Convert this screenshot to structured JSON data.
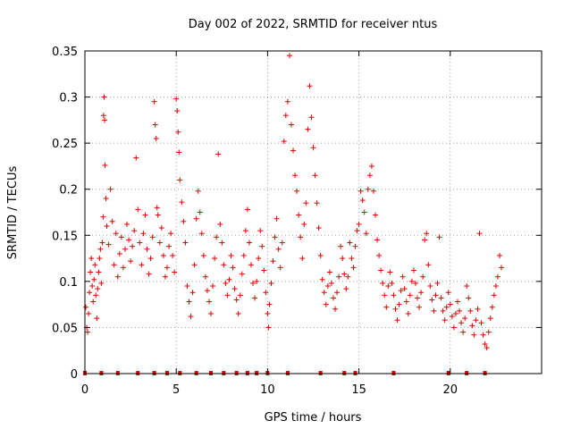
{
  "chart_data": {
    "type": "scatter",
    "title": "Day 002 of 2022, SRMTID for receiver ntus",
    "xlabel": "GPS time / hours",
    "ylabel": "SRMTID / TECUs",
    "xlim": [
      0,
      25
    ],
    "ylim": [
      0,
      0.35
    ],
    "grid": true,
    "marker": "+",
    "series_color": "#e00000",
    "xticks": [
      0,
      5,
      10,
      15,
      20
    ],
    "xtick_labels": [
      "0",
      "5",
      "10",
      "15",
      "20"
    ],
    "yticks": [
      0,
      0.05,
      0.1,
      0.15,
      0.2,
      0.25,
      0.3,
      0.35
    ],
    "ytick_labels": [
      "0",
      "0.05",
      "0.1",
      "0.15",
      "0.2",
      "0.25",
      "0.3",
      "0.35"
    ],
    "baseline_markers_x": [
      0.0,
      0.9,
      1.8,
      2.9,
      3.8,
      4.5,
      5.2,
      6.1,
      6.9,
      7.6,
      8.3,
      8.9,
      9.4,
      10.0,
      11.1,
      12.9,
      14.2,
      14.8,
      16.9,
      19.9,
      20.9,
      21.9
    ],
    "series": [
      {
        "name": "SRMTID",
        "points": [
          [
            0.05,
            0.072
          ],
          [
            0.1,
            0.05
          ],
          [
            0.15,
            0.045
          ],
          [
            0.2,
            0.065
          ],
          [
            0.25,
            0.088
          ],
          [
            0.3,
            0.11
          ],
          [
            0.35,
            0.125
          ],
          [
            0.4,
            0.095
          ],
          [
            0.45,
            0.078
          ],
          [
            0.5,
            0.102
          ],
          [
            0.55,
            0.118
          ],
          [
            0.6,
            0.085
          ],
          [
            0.65,
            0.06
          ],
          [
            0.7,
            0.092
          ],
          [
            0.75,
            0.11
          ],
          [
            0.8,
            0.125
          ],
          [
            0.85,
            0.135
          ],
          [
            0.9,
            0.098
          ],
          [
            0.95,
            0.142
          ],
          [
            1.0,
            0.17
          ],
          [
            1.02,
            0.28
          ],
          [
            1.05,
            0.3
          ],
          [
            1.08,
            0.275
          ],
          [
            1.1,
            0.226
          ],
          [
            1.15,
            0.19
          ],
          [
            1.2,
            0.16
          ],
          [
            1.3,
            0.14
          ],
          [
            1.4,
            0.2
          ],
          [
            1.5,
            0.165
          ],
          [
            1.6,
            0.118
          ],
          [
            1.7,
            0.152
          ],
          [
            1.8,
            0.105
          ],
          [
            1.9,
            0.13
          ],
          [
            2.0,
            0.148
          ],
          [
            2.1,
            0.115
          ],
          [
            2.2,
            0.135
          ],
          [
            2.3,
            0.162
          ],
          [
            2.4,
            0.145
          ],
          [
            2.5,
            0.122
          ],
          [
            2.6,
            0.138
          ],
          [
            2.7,
            0.155
          ],
          [
            2.8,
            0.234
          ],
          [
            2.9,
            0.178
          ],
          [
            3.0,
            0.142
          ],
          [
            3.1,
            0.118
          ],
          [
            3.2,
            0.152
          ],
          [
            3.3,
            0.172
          ],
          [
            3.4,
            0.135
          ],
          [
            3.5,
            0.108
          ],
          [
            3.6,
            0.125
          ],
          [
            3.7,
            0.148
          ],
          [
            3.8,
            0.295
          ],
          [
            3.85,
            0.27
          ],
          [
            3.9,
            0.255
          ],
          [
            3.95,
            0.18
          ],
          [
            4.0,
            0.172
          ],
          [
            4.1,
            0.142
          ],
          [
            4.2,
            0.158
          ],
          [
            4.3,
            0.128
          ],
          [
            4.4,
            0.105
          ],
          [
            4.5,
            0.115
          ],
          [
            4.6,
            0.138
          ],
          [
            4.7,
            0.152
          ],
          [
            4.8,
            0.128
          ],
          [
            4.9,
            0.11
          ],
          [
            5.0,
            0.298
          ],
          [
            5.05,
            0.285
          ],
          [
            5.1,
            0.262
          ],
          [
            5.15,
            0.24
          ],
          [
            5.2,
            0.21
          ],
          [
            5.3,
            0.186
          ],
          [
            5.4,
            0.165
          ],
          [
            5.5,
            0.142
          ],
          [
            5.6,
            0.095
          ],
          [
            5.7,
            0.078
          ],
          [
            5.8,
            0.062
          ],
          [
            5.9,
            0.088
          ],
          [
            6.0,
            0.118
          ],
          [
            6.1,
            0.168
          ],
          [
            6.2,
            0.198
          ],
          [
            6.3,
            0.175
          ],
          [
            6.4,
            0.152
          ],
          [
            6.5,
            0.128
          ],
          [
            6.6,
            0.105
          ],
          [
            6.7,
            0.09
          ],
          [
            6.8,
            0.078
          ],
          [
            6.9,
            0.065
          ],
          [
            7.0,
            0.095
          ],
          [
            7.1,
            0.125
          ],
          [
            7.2,
            0.148
          ],
          [
            7.3,
            0.238
          ],
          [
            7.4,
            0.162
          ],
          [
            7.5,
            0.142
          ],
          [
            7.6,
            0.118
          ],
          [
            7.7,
            0.098
          ],
          [
            7.8,
            0.085
          ],
          [
            7.9,
            0.102
          ],
          [
            8.0,
            0.128
          ],
          [
            8.1,
            0.115
          ],
          [
            8.2,
            0.092
          ],
          [
            8.3,
            0.08
          ],
          [
            8.4,
            0.065
          ],
          [
            8.5,
            0.085
          ],
          [
            8.6,
            0.108
          ],
          [
            8.7,
            0.128
          ],
          [
            8.8,
            0.155
          ],
          [
            8.9,
            0.178
          ],
          [
            9.0,
            0.142
          ],
          [
            9.1,
            0.118
          ],
          [
            9.2,
            0.098
          ],
          [
            9.3,
            0.082
          ],
          [
            9.4,
            0.1
          ],
          [
            9.5,
            0.125
          ],
          [
            9.6,
            0.155
          ],
          [
            9.7,
            0.138
          ],
          [
            9.8,
            0.112
          ],
          [
            9.9,
            0.088
          ],
          [
            10.0,
            0.065
          ],
          [
            10.05,
            0.05
          ],
          [
            10.1,
            0.075
          ],
          [
            10.2,
            0.098
          ],
          [
            10.3,
            0.122
          ],
          [
            10.4,
            0.148
          ],
          [
            10.5,
            0.168
          ],
          [
            10.6,
            0.135
          ],
          [
            10.7,
            0.115
          ],
          [
            10.8,
            0.142
          ],
          [
            10.9,
            0.252
          ],
          [
            11.0,
            0.28
          ],
          [
            11.1,
            0.295
          ],
          [
            11.2,
            0.345
          ],
          [
            11.3,
            0.27
          ],
          [
            11.4,
            0.242
          ],
          [
            11.5,
            0.215
          ],
          [
            11.6,
            0.198
          ],
          [
            11.7,
            0.172
          ],
          [
            11.8,
            0.148
          ],
          [
            11.9,
            0.125
          ],
          [
            12.0,
            0.162
          ],
          [
            12.1,
            0.185
          ],
          [
            12.2,
            0.265
          ],
          [
            12.3,
            0.312
          ],
          [
            12.4,
            0.278
          ],
          [
            12.5,
            0.245
          ],
          [
            12.6,
            0.215
          ],
          [
            12.7,
            0.185
          ],
          [
            12.8,
            0.158
          ],
          [
            12.9,
            0.128
          ],
          [
            13.0,
            0.102
          ],
          [
            13.1,
            0.088
          ],
          [
            13.2,
            0.075
          ],
          [
            13.3,
            0.095
          ],
          [
            13.4,
            0.11
          ],
          [
            13.5,
            0.098
          ],
          [
            13.6,
            0.082
          ],
          [
            13.7,
            0.07
          ],
          [
            13.8,
            0.088
          ],
          [
            13.9,
            0.105
          ],
          [
            14.0,
            0.138
          ],
          [
            14.1,
            0.125
          ],
          [
            14.2,
            0.108
          ],
          [
            14.3,
            0.092
          ],
          [
            14.4,
            0.105
          ],
          [
            14.5,
            0.142
          ],
          [
            14.6,
            0.125
          ],
          [
            14.7,
            0.115
          ],
          [
            14.8,
            0.138
          ],
          [
            14.9,
            0.155
          ],
          [
            15.0,
            0.162
          ],
          [
            15.1,
            0.198
          ],
          [
            15.2,
            0.188
          ],
          [
            15.3,
            0.175
          ],
          [
            15.4,
            0.152
          ],
          [
            15.5,
            0.2
          ],
          [
            15.6,
            0.215
          ],
          [
            15.7,
            0.225
          ],
          [
            15.8,
            0.198
          ],
          [
            15.9,
            0.172
          ],
          [
            16.0,
            0.145
          ],
          [
            16.1,
            0.128
          ],
          [
            16.2,
            0.112
          ],
          [
            16.3,
            0.098
          ],
          [
            16.4,
            0.085
          ],
          [
            16.5,
            0.072
          ],
          [
            16.6,
            0.095
          ],
          [
            16.7,
            0.11
          ],
          [
            16.8,
            0.098
          ],
          [
            16.9,
            0.085
          ],
          [
            17.0,
            0.07
          ],
          [
            17.1,
            0.058
          ],
          [
            17.2,
            0.075
          ],
          [
            17.3,
            0.09
          ],
          [
            17.4,
            0.105
          ],
          [
            17.5,
            0.092
          ],
          [
            17.6,
            0.078
          ],
          [
            17.7,
            0.065
          ],
          [
            17.8,
            0.085
          ],
          [
            17.9,
            0.1
          ],
          [
            18.0,
            0.112
          ],
          [
            18.1,
            0.098
          ],
          [
            18.2,
            0.082
          ],
          [
            18.3,
            0.072
          ],
          [
            18.4,
            0.088
          ],
          [
            18.5,
            0.105
          ],
          [
            18.6,
            0.145
          ],
          [
            18.7,
            0.152
          ],
          [
            18.8,
            0.118
          ],
          [
            18.9,
            0.095
          ],
          [
            19.0,
            0.08
          ],
          [
            19.1,
            0.068
          ],
          [
            19.2,
            0.085
          ],
          [
            19.3,
            0.098
          ],
          [
            19.4,
            0.148
          ],
          [
            19.5,
            0.082
          ],
          [
            19.6,
            0.068
          ],
          [
            19.7,
            0.058
          ],
          [
            19.8,
            0.072
          ],
          [
            19.9,
            0.088
          ],
          [
            20.0,
            0.075
          ],
          [
            20.1,
            0.062
          ],
          [
            20.2,
            0.05
          ],
          [
            20.3,
            0.065
          ],
          [
            20.4,
            0.078
          ],
          [
            20.5,
            0.068
          ],
          [
            20.6,
            0.055
          ],
          [
            20.7,
            0.045
          ],
          [
            20.8,
            0.06
          ],
          [
            20.9,
            0.095
          ],
          [
            21.0,
            0.082
          ],
          [
            21.1,
            0.068
          ],
          [
            21.2,
            0.052
          ],
          [
            21.3,
            0.042
          ],
          [
            21.4,
            0.058
          ],
          [
            21.5,
            0.07
          ],
          [
            21.6,
            0.152
          ],
          [
            21.7,
            0.055
          ],
          [
            21.8,
            0.042
          ],
          [
            21.9,
            0.032
          ],
          [
            22.0,
            0.028
          ],
          [
            22.1,
            0.045
          ],
          [
            22.2,
            0.06
          ],
          [
            22.3,
            0.072
          ],
          [
            22.4,
            0.085
          ],
          [
            22.5,
            0.095
          ],
          [
            22.6,
            0.105
          ],
          [
            22.7,
            0.128
          ],
          [
            22.8,
            0.115
          ]
        ]
      }
    ]
  }
}
